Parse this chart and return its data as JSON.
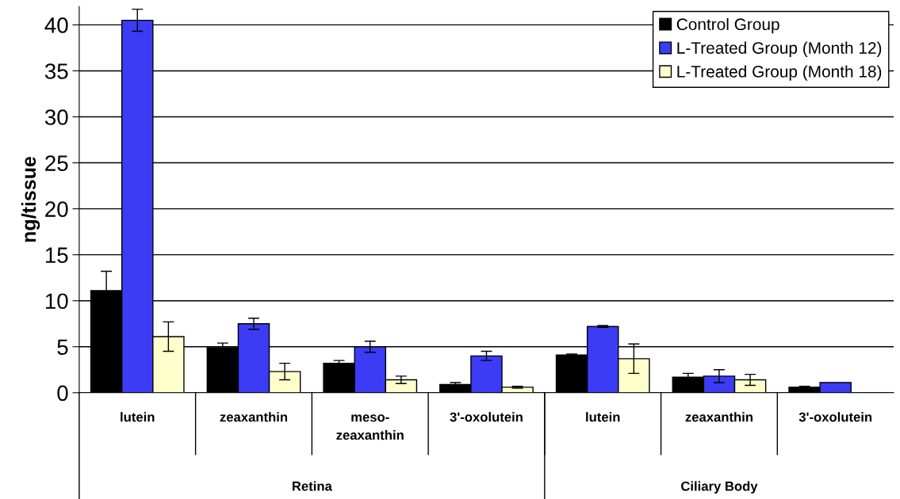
{
  "chart_data": {
    "type": "bar",
    "ylabel": "ng/tissue",
    "categories": [
      "lutein",
      "zeaxanthin",
      "meso-\nzeaxanthin",
      "3'-oxolutein",
      "lutein",
      "zeaxanthin",
      "3'-oxolutein"
    ],
    "series": [
      {
        "name": "Control Group",
        "color": "#000000",
        "values": [
          11.1,
          4.9,
          3.2,
          0.9,
          4.1,
          1.7,
          0.6
        ],
        "errors": [
          2.1,
          0.5,
          0.3,
          0.2,
          0.1,
          0.4,
          0.1
        ]
      },
      {
        "name": "L-Treated Group (Month 12)",
        "color": "#3c3cf5",
        "values": [
          40.5,
          7.5,
          5.0,
          4.0,
          7.2,
          1.8,
          1.1
        ],
        "errors": [
          1.2,
          0.6,
          0.6,
          0.5,
          0.1,
          0.7,
          null
        ]
      },
      {
        "name": "L-Treated Group (Month 18)",
        "color": "#ffffcc",
        "values": [
          6.1,
          2.3,
          1.4,
          0.6,
          3.7,
          1.4,
          null
        ],
        "errors": [
          1.6,
          0.9,
          0.4,
          0.1,
          1.6,
          0.6,
          null
        ]
      }
    ],
    "ylim": [
      0,
      42
    ],
    "yticks": [
      0,
      5,
      10,
      15,
      20,
      25,
      30,
      35,
      40
    ],
    "grid": "y",
    "legend": "top right",
    "annotations": [
      "Retina",
      "Ciliary Body"
    ]
  }
}
